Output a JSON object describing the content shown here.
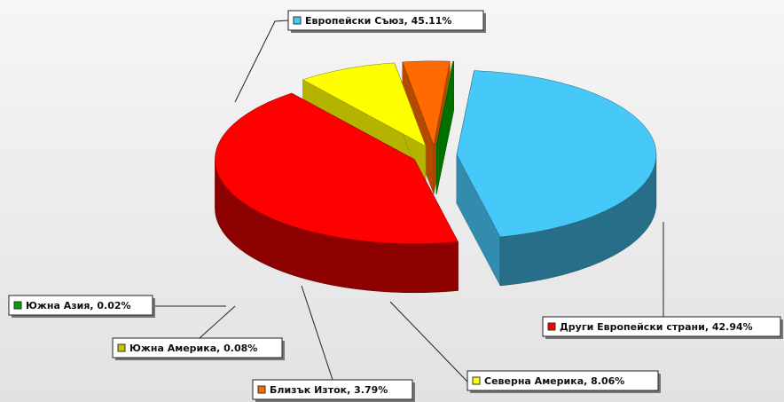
{
  "chart_data": {
    "type": "pie3d",
    "values": [
      45.11,
      42.94,
      8.06,
      3.79,
      0.08,
      0.02
    ],
    "value_labels": [
      "Европейски Съюз, 45.11%",
      "Други Европейски страни, 42.94%",
      "Северна Америка, 8.06%",
      "Близък Изток, 3.79%",
      "Южна Америка, 0.08%",
      "Южна Азия, 0.02%"
    ],
    "colors": [
      "#46c8f8",
      "#ff0000",
      "#ffff00",
      "#ff6a00",
      "#c8c400",
      "#00a000"
    ]
  }
}
